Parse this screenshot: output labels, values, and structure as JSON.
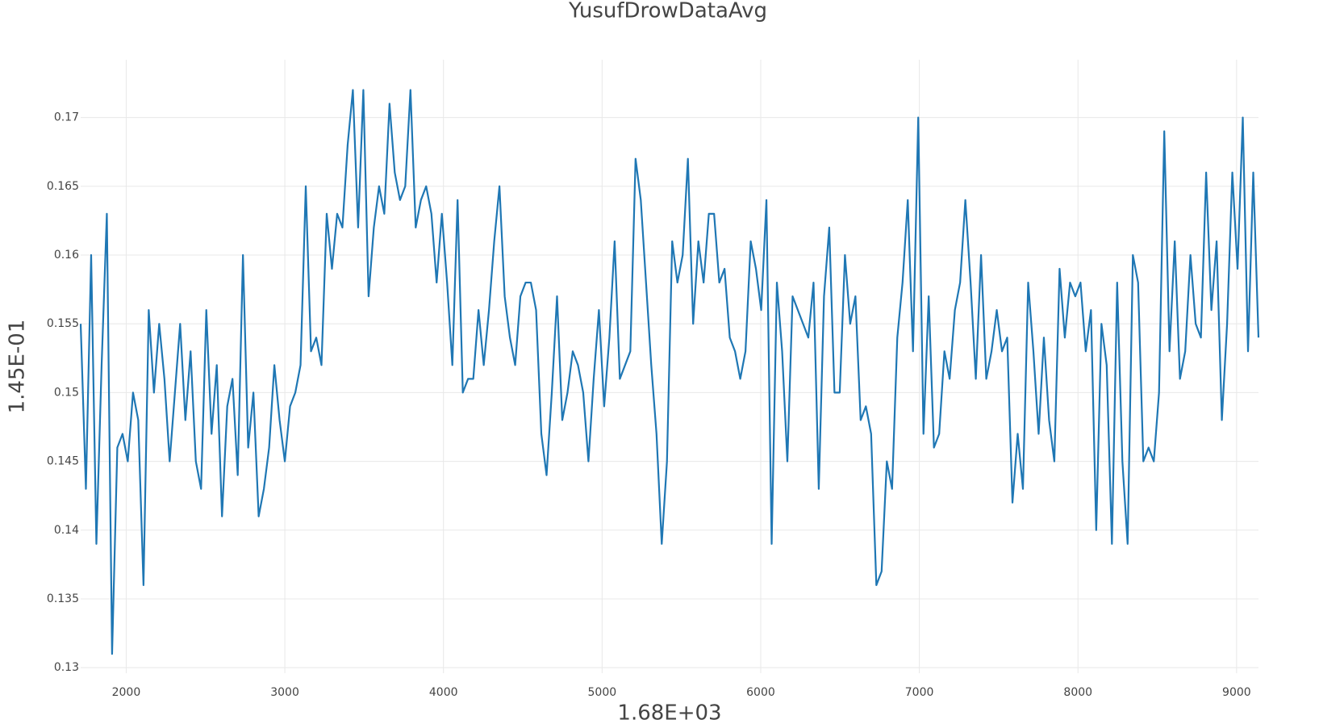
{
  "chart_data": {
    "type": "line",
    "title": "YusufDrowDataAvg",
    "x_label": "1.68E+03",
    "y_label": "1.45E-01",
    "x": [
      1713,
      1746,
      1779,
      1812,
      1845,
      1878,
      1911,
      1944,
      1977,
      2010,
      2043,
      2076,
      2109,
      2142,
      2175,
      2208,
      2241,
      2274,
      2307,
      2340,
      2373,
      2406,
      2439,
      2472,
      2505,
      2538,
      2571,
      2604,
      2637,
      2670,
      2703,
      2736,
      2769,
      2802,
      2835,
      2868,
      2901,
      2934,
      2967,
      3000,
      3033,
      3066,
      3099,
      3132,
      3165,
      3198,
      3231,
      3264,
      3297,
      3330,
      3363,
      3396,
      3429,
      3462,
      3495,
      3528,
      3561,
      3594,
      3627,
      3660,
      3693,
      3726,
      3759,
      3792,
      3825,
      3858,
      3891,
      3924,
      3957,
      3990,
      4023,
      4056,
      4089,
      4122,
      4155,
      4188,
      4221,
      4254,
      4287,
      4320,
      4353,
      4386,
      4419,
      4452,
      4485,
      4518,
      4551,
      4584,
      4617,
      4650,
      4683,
      4716,
      4749,
      4782,
      4815,
      4848,
      4881,
      4914,
      4947,
      4980,
      5013,
      5046,
      5079,
      5112,
      5145,
      5178,
      5211,
      5244,
      5277,
      5310,
      5343,
      5376,
      5409,
      5442,
      5475,
      5508,
      5541,
      5574,
      5607,
      5640,
      5673,
      5706,
      5739,
      5772,
      5805,
      5838,
      5871,
      5904,
      5937,
      5970,
      6003,
      6036,
      6069,
      6102,
      6135,
      6168,
      6201,
      6234,
      6267,
      6300,
      6333,
      6366,
      6399,
      6432,
      6465,
      6498,
      6531,
      6564,
      6597,
      6630,
      6663,
      6696,
      6729,
      6762,
      6795,
      6828,
      6861,
      6894,
      6927,
      6960,
      6993,
      7026,
      7059,
      7092,
      7125,
      7158,
      7191,
      7224,
      7257,
      7290,
      7323,
      7356,
      7389,
      7422,
      7455,
      7488,
      7521,
      7554,
      7587,
      7620,
      7653,
      7686,
      7719,
      7752,
      7785,
      7818,
      7851,
      7884,
      7917,
      7950,
      7983,
      8016,
      8049,
      8082,
      8115,
      8148,
      8181,
      8214,
      8247,
      8280,
      8313,
      8346,
      8379,
      8412,
      8445,
      8478,
      8511,
      8544,
      8577,
      8610,
      8643,
      8676,
      8709,
      8742,
      8775,
      8808,
      8841,
      8874,
      8907,
      8940,
      8973,
      9006,
      9039,
      9072,
      9105,
      9138
    ],
    "series": [
      {
        "color": "#1f77b4",
        "values": [
          0.155,
          0.143,
          0.16,
          0.139,
          0.152,
          0.163,
          0.131,
          0.146,
          0.147,
          0.145,
          0.15,
          0.148,
          0.136,
          0.156,
          0.15,
          0.155,
          0.151,
          0.145,
          0.15,
          0.155,
          0.148,
          0.153,
          0.145,
          0.143,
          0.156,
          0.147,
          0.152,
          0.141,
          0.149,
          0.151,
          0.144,
          0.16,
          0.146,
          0.15,
          0.141,
          0.143,
          0.146,
          0.152,
          0.148,
          0.145,
          0.149,
          0.15,
          0.152,
          0.165,
          0.153,
          0.154,
          0.152,
          0.163,
          0.159,
          0.163,
          0.162,
          0.168,
          0.172,
          0.162,
          0.172,
          0.157,
          0.162,
          0.165,
          0.163,
          0.171,
          0.166,
          0.164,
          0.165,
          0.172,
          0.162,
          0.164,
          0.165,
          0.163,
          0.158,
          0.163,
          0.158,
          0.152,
          0.164,
          0.15,
          0.151,
          0.151,
          0.156,
          0.152,
          0.156,
          0.161,
          0.165,
          0.157,
          0.154,
          0.152,
          0.157,
          0.158,
          0.158,
          0.156,
          0.147,
          0.144,
          0.15,
          0.157,
          0.148,
          0.15,
          0.153,
          0.152,
          0.15,
          0.145,
          0.151,
          0.156,
          0.149,
          0.154,
          0.161,
          0.151,
          0.152,
          0.153,
          0.167,
          0.164,
          0.158,
          0.152,
          0.147,
          0.139,
          0.145,
          0.161,
          0.158,
          0.16,
          0.167,
          0.155,
          0.161,
          0.158,
          0.163,
          0.163,
          0.158,
          0.159,
          0.154,
          0.153,
          0.151,
          0.153,
          0.161,
          0.159,
          0.156,
          0.164,
          0.139,
          0.158,
          0.153,
          0.145,
          0.157,
          0.156,
          0.155,
          0.154,
          0.158,
          0.143,
          0.157,
          0.162,
          0.15,
          0.15,
          0.16,
          0.155,
          0.157,
          0.148,
          0.149,
          0.147,
          0.136,
          0.137,
          0.145,
          0.143,
          0.154,
          0.158,
          0.164,
          0.153,
          0.17,
          0.147,
          0.157,
          0.146,
          0.147,
          0.153,
          0.151,
          0.156,
          0.158,
          0.164,
          0.158,
          0.151,
          0.16,
          0.151,
          0.153,
          0.156,
          0.153,
          0.154,
          0.142,
          0.147,
          0.143,
          0.158,
          0.153,
          0.147,
          0.154,
          0.148,
          0.145,
          0.159,
          0.154,
          0.158,
          0.157,
          0.158,
          0.153,
          0.156,
          0.14,
          0.155,
          0.152,
          0.139,
          0.158,
          0.145,
          0.139,
          0.16,
          0.158,
          0.145,
          0.146,
          0.145,
          0.15,
          0.169,
          0.153,
          0.161,
          0.151,
          0.153,
          0.16,
          0.155,
          0.154,
          0.166,
          0.156,
          0.161,
          0.148,
          0.155,
          0.166,
          0.159,
          0.17,
          0.153,
          0.166,
          0.154
        ]
      }
    ],
    "xlim": [
      1713,
      9138
    ],
    "xticks": [
      2000,
      3000,
      4000,
      5000,
      6000,
      7000,
      8000,
      9000
    ],
    "ylim": [
      0.1296,
      0.1742
    ],
    "yticks": [
      0.13,
      0.135,
      0.14,
      0.145,
      0.15,
      0.155,
      0.16,
      0.165,
      0.17
    ],
    "grid": true
  }
}
